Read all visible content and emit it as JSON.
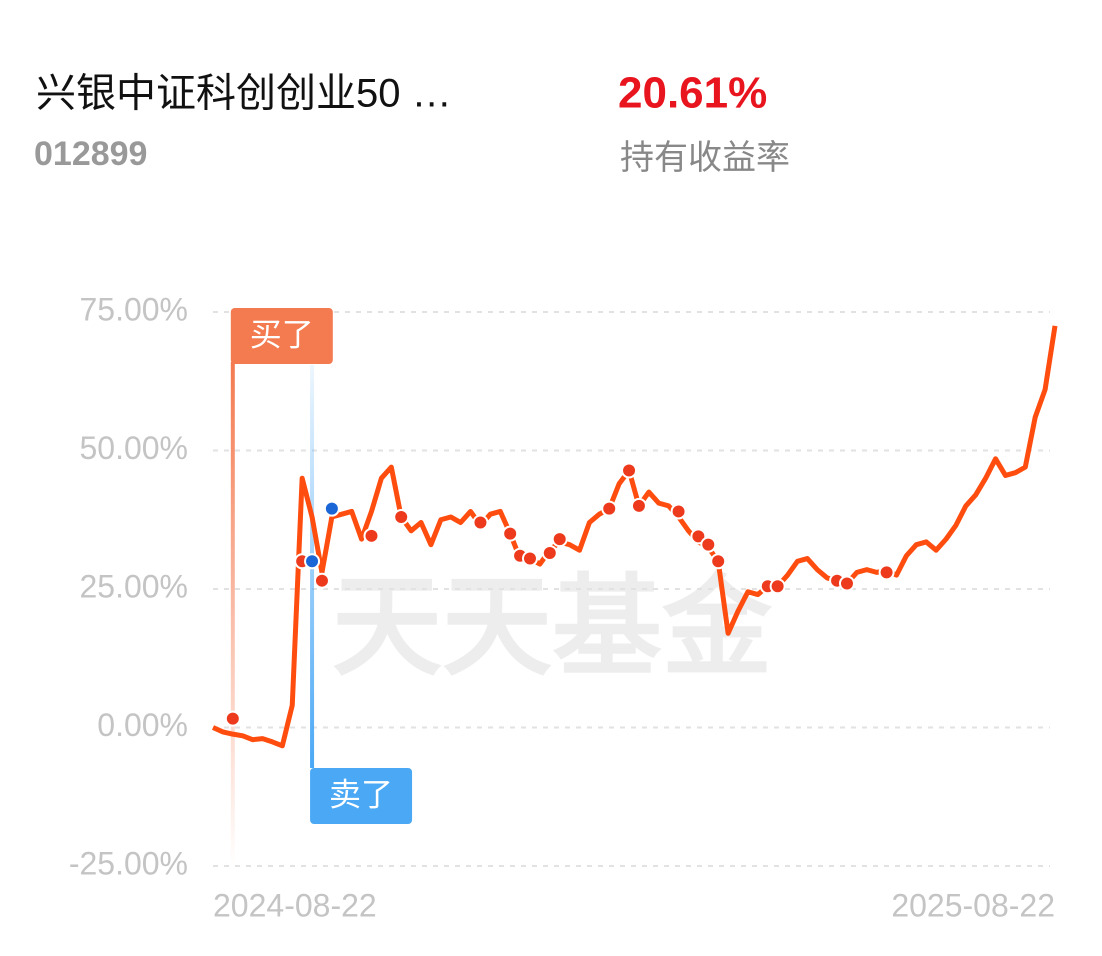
{
  "header": {
    "title": "兴银中证科创创业50 …",
    "code": "012899",
    "return_value": "20.61%",
    "return_label": "持有收益率"
  },
  "chart_data": {
    "type": "line",
    "watermark": "天天基金",
    "categories": [
      "2024-08-22",
      null,
      null,
      null,
      null,
      null,
      null,
      null,
      null,
      null,
      null,
      null,
      null,
      null,
      null,
      null,
      null,
      null,
      null,
      null,
      null,
      null,
      null,
      null,
      null,
      null,
      null,
      null,
      null,
      null,
      null,
      null,
      null,
      null,
      null,
      null,
      null,
      null,
      null,
      null,
      null,
      null,
      null,
      null,
      null,
      null,
      null,
      null,
      null,
      null,
      null,
      null,
      null,
      null,
      null,
      null,
      null,
      null,
      null,
      null,
      null,
      null,
      null,
      null,
      null,
      null,
      null,
      null,
      null,
      null,
      null,
      null,
      null,
      null,
      null,
      null,
      null,
      null,
      null,
      null,
      null,
      null,
      null,
      null,
      null,
      "2025-08-22"
    ],
    "series": [
      {
        "color": "#ff4d0f",
        "values": [
          0,
          -0.8,
          -1.2,
          -1.5,
          -2.2,
          -2.0,
          -2.6,
          -3.3,
          4,
          45,
          38,
          28,
          38,
          38.5,
          39,
          34,
          39,
          45,
          47,
          38,
          35.5,
          37,
          33,
          37.5,
          38,
          37,
          39,
          36.5,
          38.5,
          39,
          35,
          30.5,
          30.5,
          29.5,
          32,
          33.5,
          33,
          32,
          37,
          38.5,
          39.5,
          44,
          46.4,
          40,
          42.5,
          40.5,
          40,
          38,
          35.5,
          33.5,
          32.5,
          30,
          17,
          21,
          24.5,
          24,
          25.5,
          25.5,
          27.5,
          30,
          30.5,
          28.5,
          27,
          26.5,
          26,
          28,
          28.5,
          28,
          28.3,
          27.5,
          31,
          33,
          33.5,
          32,
          34,
          36.5,
          40,
          42,
          45,
          48.5,
          45.5,
          46,
          47,
          56,
          61,
          72.5
        ]
      }
    ],
    "markers": {
      "buy": {
        "label": "买了",
        "color": "#ee3a1c",
        "flag_color": "#f47a50",
        "values": [
          null,
          null,
          1.6,
          null,
          null,
          null,
          null,
          null,
          null,
          30,
          null,
          26.5,
          null,
          null,
          null,
          null,
          34.6,
          null,
          null,
          38,
          null,
          null,
          null,
          null,
          null,
          null,
          null,
          37,
          null,
          null,
          35,
          31,
          30.5,
          null,
          31.5,
          34,
          null,
          null,
          null,
          null,
          39.5,
          null,
          46.4,
          40,
          null,
          null,
          null,
          39,
          null,
          34.5,
          33,
          30,
          null,
          null,
          null,
          null,
          25.5,
          25.5,
          null,
          null,
          null,
          null,
          null,
          26.5,
          26,
          null,
          null,
          null,
          28,
          null,
          null,
          null,
          null,
          null,
          null,
          null,
          null,
          null,
          null,
          null,
          null,
          null,
          null,
          null,
          null,
          null
        ]
      },
      "sell": {
        "label": "卖了",
        "color": "#1a66d6",
        "flag_color": "#4aa8f5",
        "values": [
          null,
          null,
          null,
          null,
          null,
          null,
          null,
          null,
          null,
          null,
          30,
          null,
          39.5,
          null,
          null,
          null,
          null,
          null,
          null,
          null,
          null,
          null,
          null,
          null,
          null,
          null,
          null,
          null,
          null,
          null,
          null,
          null,
          null,
          null,
          null,
          null,
          null,
          null,
          null,
          null,
          null,
          null,
          null,
          null,
          null,
          null,
          null,
          null,
          null,
          null,
          null,
          null,
          null,
          null,
          null,
          null,
          null,
          null,
          null,
          null,
          null,
          null,
          null,
          null,
          null,
          null,
          null,
          null,
          null,
          null,
          null,
          null,
          null,
          null,
          null,
          null,
          null,
          null,
          null,
          null,
          null,
          null,
          null,
          null,
          null,
          null
        ]
      }
    },
    "ylim": [
      -25,
      75
    ],
    "yticks": [
      {
        "value": -25,
        "label": "-25.00%"
      },
      {
        "value": 0,
        "label": "0.00%"
      },
      {
        "value": 25,
        "label": "25.00%"
      },
      {
        "value": 50,
        "label": "50.00%"
      },
      {
        "value": 75,
        "label": "75.00%"
      }
    ],
    "grid": true
  }
}
